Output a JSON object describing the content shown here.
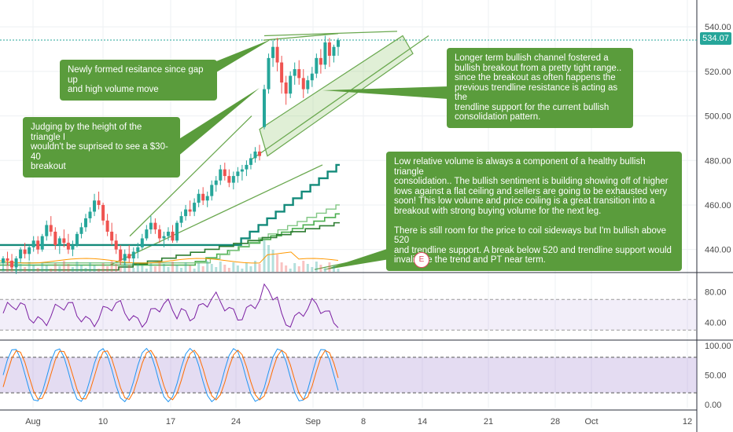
{
  "current_price": "534.07",
  "earnings_marker": "E",
  "annotations": [
    {
      "id": "note-resistance",
      "text": "Newly formed resitance since gap up\nand high volume move"
    },
    {
      "id": "note-triangle",
      "text": "Judging by the height of the triangle I\nwouldn't be suprised to see a $30-40\nbreakout"
    },
    {
      "id": "note-channel",
      "text": "Longer term bullish channel fostered a\nbullish breakout from a pretty tight range..\nsince the breakout as often happens the\nprevious trendline resistance is acting as the\ntrendline support for the current bullish\nconsolidation pattern."
    },
    {
      "id": "note-volume",
      "text": "Low relative volume is always a component of a healthy bullish triangle\nconsolidation.. The bullish sentiment is building showing off of higher\nlows against a flat ceiling and sellers are going to be exhausted very\nsoon!  This low volume and price coiling is a great transition into a\nbreakout with strong buying volume for the next leg.\n\nThere is still room for the price to coil sideways but I'm bullish above 520\nand trendline support.  A break below 520 and trendline support would\ninvalidate the trend and PT near term."
    }
  ],
  "chart_data": [
    {
      "type": "candlestick",
      "ylim": [
        430,
        545
      ],
      "yticks": [
        "540.00",
        "520.00",
        "500.00",
        "480.00",
        "460.00",
        "440.00"
      ],
      "ytick_values": [
        540,
        520,
        500,
        480,
        460,
        440
      ],
      "xticks": [
        "Aug",
        "10",
        "17",
        "24",
        "Sep",
        "8",
        "14",
        "21",
        "28",
        "Oct",
        "12"
      ],
      "ohlc": [
        [
          434,
          437,
          431,
          436
        ],
        [
          436,
          439,
          433,
          435
        ],
        [
          435,
          438,
          431,
          432
        ],
        [
          432,
          437,
          429,
          436
        ],
        [
          436,
          441,
          434,
          440
        ],
        [
          440,
          443,
          436,
          438
        ],
        [
          438,
          442,
          435,
          441
        ],
        [
          441,
          446,
          439,
          444
        ],
        [
          444,
          446,
          438,
          440
        ],
        [
          440,
          447,
          439,
          446
        ],
        [
          446,
          453,
          444,
          451
        ],
        [
          451,
          455,
          446,
          448
        ],
        [
          448,
          450,
          440,
          442
        ],
        [
          442,
          446,
          438,
          445
        ],
        [
          445,
          449,
          441,
          443
        ],
        [
          443,
          447,
          438,
          440
        ],
        [
          440,
          444,
          437,
          442
        ],
        [
          442,
          448,
          441,
          447
        ],
        [
          447,
          452,
          445,
          450
        ],
        [
          450,
          456,
          448,
          454
        ],
        [
          454,
          459,
          452,
          457
        ],
        [
          457,
          465,
          455,
          462
        ],
        [
          462,
          466,
          458,
          460
        ],
        [
          460,
          461,
          451,
          453
        ],
        [
          453,
          456,
          446,
          448
        ],
        [
          448,
          452,
          442,
          444
        ],
        [
          444,
          447,
          438,
          440
        ],
        [
          440,
          442,
          433,
          435
        ],
        [
          435,
          440,
          433,
          438
        ],
        [
          438,
          442,
          434,
          436
        ],
        [
          436,
          441,
          433,
          439
        ],
        [
          439,
          443,
          436,
          441
        ],
        [
          441,
          447,
          440,
          445
        ],
        [
          445,
          451,
          444,
          449
        ],
        [
          449,
          455,
          447,
          452
        ],
        [
          452,
          454,
          447,
          449
        ],
        [
          449,
          451,
          443,
          445
        ],
        [
          445,
          448,
          441,
          446
        ],
        [
          446,
          450,
          444,
          448
        ],
        [
          448,
          451,
          443,
          444
        ],
        [
          444,
          453,
          443,
          452
        ],
        [
          452,
          457,
          450,
          455
        ],
        [
          455,
          460,
          453,
          458
        ],
        [
          458,
          462,
          455,
          457
        ],
        [
          457,
          463,
          455,
          461
        ],
        [
          461,
          467,
          459,
          465
        ],
        [
          465,
          468,
          460,
          462
        ],
        [
          462,
          466,
          459,
          464
        ],
        [
          464,
          471,
          462,
          469
        ],
        [
          469,
          473,
          466,
          471
        ],
        [
          471,
          478,
          469,
          476
        ],
        [
          476,
          479,
          471,
          473
        ],
        [
          473,
          476,
          468,
          470
        ],
        [
          470,
          475,
          467,
          473
        ],
        [
          473,
          477,
          470,
          475
        ],
        [
          475,
          478,
          471,
          476
        ],
        [
          476,
          480,
          473,
          478
        ],
        [
          478,
          483,
          476,
          481
        ],
        [
          481,
          486,
          479,
          484
        ],
        [
          484,
          487,
          480,
          482
        ],
        [
          495,
          514,
          494,
          512
        ],
        [
          512,
          528,
          510,
          526
        ],
        [
          526,
          534,
          522,
          531
        ],
        [
          531,
          535,
          520,
          524
        ],
        [
          524,
          527,
          510,
          515
        ],
        [
          515,
          518,
          505,
          510
        ],
        [
          510,
          520,
          508,
          518
        ],
        [
          518,
          524,
          514,
          521
        ],
        [
          521,
          525,
          514,
          517
        ],
        [
          517,
          521,
          508,
          512
        ],
        [
          512,
          518,
          510,
          516
        ],
        [
          516,
          522,
          513,
          519
        ],
        [
          519,
          528,
          517,
          526
        ],
        [
          526,
          530,
          519,
          523
        ],
        [
          523,
          536,
          521,
          533
        ],
        [
          533,
          535,
          522,
          527
        ],
        [
          527,
          532,
          524,
          531
        ],
        [
          531,
          535,
          527,
          534
        ]
      ]
    },
    {
      "type": "line",
      "name": "RSI",
      "ylim": [
        20,
        100
      ],
      "yticks": [
        "80.00",
        "40.00"
      ],
      "ytick_values": [
        80,
        40
      ],
      "band": [
        30,
        70
      ]
    },
    {
      "type": "line",
      "name": "Stochastic RSI",
      "ylim": [
        -5,
        105
      ],
      "yticks": [
        "100.00",
        "50.00",
        "0.00"
      ],
      "ytick_values": [
        100,
        50,
        0
      ],
      "band": [
        20,
        80
      ]
    }
  ]
}
